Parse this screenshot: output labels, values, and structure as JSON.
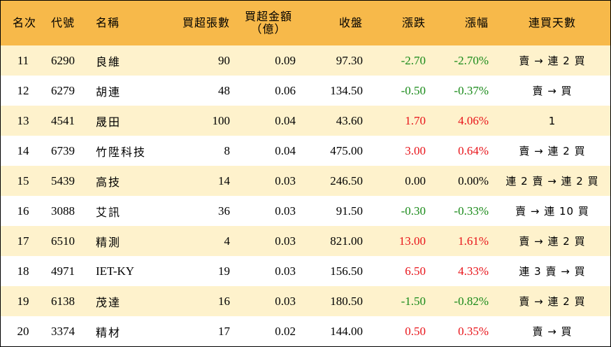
{
  "headers": {
    "rank": "名次",
    "code": "代號",
    "name": "名稱",
    "net_lots": "買超張數",
    "net_amount_line1": "買超金額",
    "net_amount_line2": "（億）",
    "close": "收盤",
    "change": "漲跌",
    "change_pct": "漲幅",
    "streak": "連買天數"
  },
  "colors": {
    "header_bg": "#f7b94a",
    "alt_row_bg": "#fef2cc",
    "up": "#e8141a",
    "down": "#198a19"
  },
  "rows": [
    {
      "rank": "11",
      "code": "6290",
      "name": "良維",
      "net_lots": "90",
      "net_amount": "0.09",
      "close": "97.30",
      "change": "-2.70",
      "change_pct": "-2.70%",
      "streak": "賣 → 連 2 買",
      "dir": "down"
    },
    {
      "rank": "12",
      "code": "6279",
      "name": "胡連",
      "net_lots": "48",
      "net_amount": "0.06",
      "close": "134.50",
      "change": "-0.50",
      "change_pct": "-0.37%",
      "streak": "賣 → 買",
      "dir": "down"
    },
    {
      "rank": "13",
      "code": "4541",
      "name": "晟田",
      "net_lots": "100",
      "net_amount": "0.04",
      "close": "43.60",
      "change": "1.70",
      "change_pct": "4.06%",
      "streak": "1",
      "dir": "up"
    },
    {
      "rank": "14",
      "code": "6739",
      "name": "竹陞科技",
      "net_lots": "8",
      "net_amount": "0.04",
      "close": "475.00",
      "change": "3.00",
      "change_pct": "0.64%",
      "streak": "賣 → 連 2 買",
      "dir": "up"
    },
    {
      "rank": "15",
      "code": "5439",
      "name": "高技",
      "net_lots": "14",
      "net_amount": "0.03",
      "close": "246.50",
      "change": "0.00",
      "change_pct": "0.00%",
      "streak": "連 2 賣 → 連 2 買",
      "dir": "flat"
    },
    {
      "rank": "16",
      "code": "3088",
      "name": "艾訊",
      "net_lots": "36",
      "net_amount": "0.03",
      "close": "91.50",
      "change": "-0.30",
      "change_pct": "-0.33%",
      "streak": "賣 → 連 10 買",
      "dir": "down"
    },
    {
      "rank": "17",
      "code": "6510",
      "name": "精測",
      "net_lots": "4",
      "net_amount": "0.03",
      "close": "821.00",
      "change": "13.00",
      "change_pct": "1.61%",
      "streak": "賣 → 連 2 買",
      "dir": "up"
    },
    {
      "rank": "18",
      "code": "4971",
      "name": "IET-KY",
      "net_lots": "19",
      "net_amount": "0.03",
      "close": "156.50",
      "change": "6.50",
      "change_pct": "4.33%",
      "streak": "連 3 賣 → 買",
      "dir": "up"
    },
    {
      "rank": "19",
      "code": "6138",
      "name": "茂達",
      "net_lots": "16",
      "net_amount": "0.03",
      "close": "180.50",
      "change": "-1.50",
      "change_pct": "-0.82%",
      "streak": "賣 → 連 2 買",
      "dir": "down"
    },
    {
      "rank": "20",
      "code": "3374",
      "name": "精材",
      "net_lots": "17",
      "net_amount": "0.02",
      "close": "144.00",
      "change": "0.50",
      "change_pct": "0.35%",
      "streak": "賣 → 買",
      "dir": "up"
    }
  ]
}
